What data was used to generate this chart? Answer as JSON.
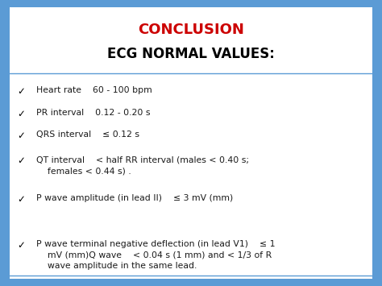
{
  "title1": "CONCLUSION",
  "title2": "ECG NORMAL VALUES:",
  "title1_color": "#cc0000",
  "title2_color": "#000000",
  "background_color": "#ffffff",
  "border_color": "#5b9bd5",
  "bullet": "✓",
  "bullet_color": "#000000",
  "text_color": "#1a1a1a",
  "items": [
    "Heart rate    60 - 100 bpm",
    "PR interval    0.12 - 0.20 s",
    "QRS interval    ≤ 0.12 s",
    "QT interval    < half RR interval (males < 0.40 s;\n    females < 0.44 s) .",
    "P wave amplitude (in lead II)    ≤ 3 mV (mm)",
    "P wave terminal negative deflection (in lead V1)    ≤ 1\n    mV (mm)Q wave    < 0.04 s (1 mm) and < 1/3 of R\n    wave amplitude in the same lead."
  ],
  "figsize": [
    4.74,
    3.55
  ],
  "dpi": 100,
  "title1_fontsize": 13,
  "title2_fontsize": 12,
  "item_fontsize": 7.8,
  "bullet_fontsize": 8.5
}
